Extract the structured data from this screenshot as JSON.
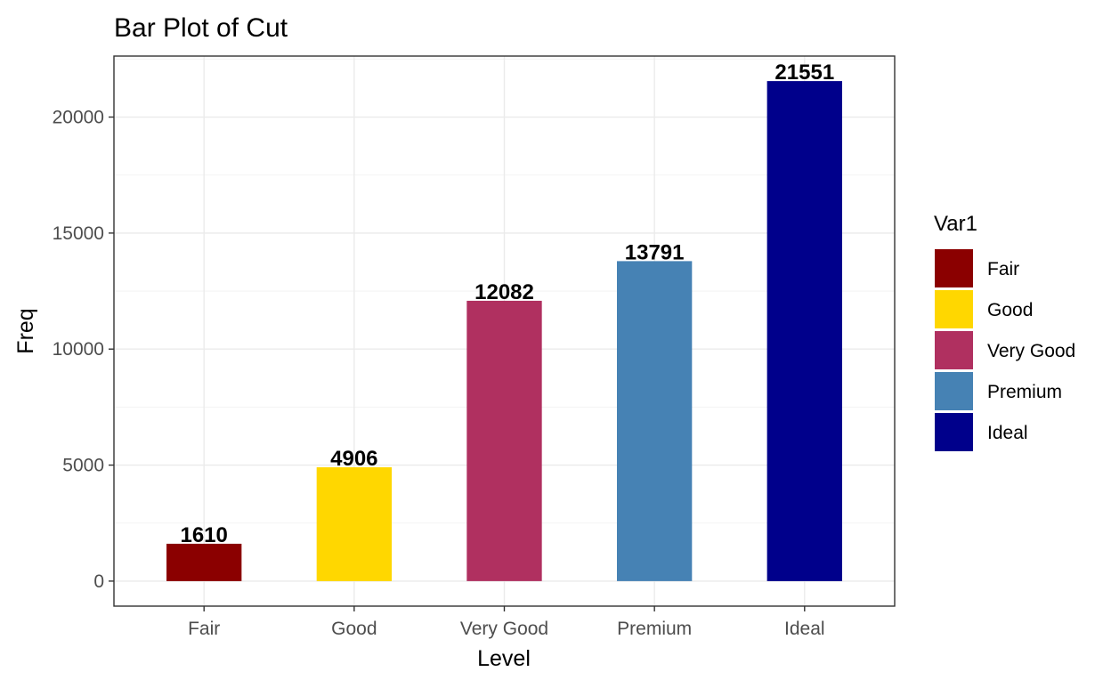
{
  "chart_data": {
    "type": "bar",
    "title": "Bar Plot of Cut",
    "xlabel": "Level",
    "ylabel": "Freq",
    "categories": [
      "Fair",
      "Good",
      "Very Good",
      "Premium",
      "Ideal"
    ],
    "values": [
      1610,
      4906,
      12082,
      13791,
      21551
    ],
    "data_labels": [
      "1610",
      "4906",
      "12082",
      "13791",
      "21551"
    ],
    "colors": [
      "#8b0000",
      "#ffd700",
      "#b03060",
      "#4682b4",
      "#00008b"
    ],
    "ylim": [
      -1078,
      22629
    ],
    "yticks": [
      0,
      5000,
      10000,
      15000,
      20000
    ],
    "ytick_labels": [
      "0",
      "5000",
      "10000",
      "15000",
      "20000"
    ],
    "grid": true,
    "legend": {
      "title": "Var1",
      "position": "right",
      "entries": [
        "Fair",
        "Good",
        "Very Good",
        "Premium",
        "Ideal"
      ]
    }
  }
}
